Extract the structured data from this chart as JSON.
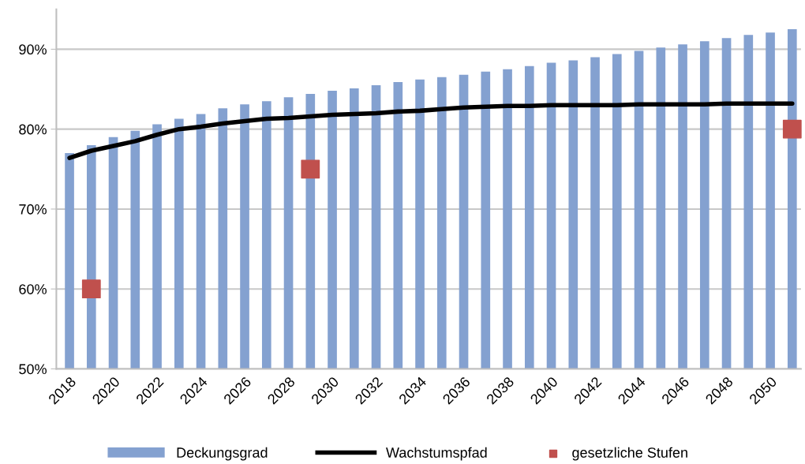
{
  "chart_data": {
    "type": "bar",
    "categories": [
      "2018",
      null,
      "2020",
      null,
      "2022",
      null,
      "2024",
      null,
      "2026",
      null,
      "2028",
      null,
      "2030",
      null,
      "2032",
      null,
      "2034",
      null,
      "2036",
      null,
      "2038",
      null,
      "2040",
      null,
      "2042",
      null,
      "2044",
      null,
      "2046",
      null,
      "2048",
      null,
      "2050",
      null
    ],
    "series": [
      {
        "name": "Deckungsgrad",
        "color": "#84a1d0",
        "values": [
          77.0,
          78.0,
          79.0,
          79.8,
          80.6,
          81.3,
          81.9,
          82.6,
          83.1,
          83.5,
          84.0,
          84.4,
          84.8,
          85.1,
          85.5,
          85.9,
          86.2,
          86.5,
          86.8,
          87.2,
          87.5,
          87.9,
          88.3,
          88.6,
          89.0,
          89.4,
          89.8,
          90.2,
          90.6,
          91.0,
          91.4,
          91.8,
          92.1,
          92.5
        ]
      },
      {
        "name": "Wachstumspfad",
        "type": "line",
        "color": "#000000",
        "marker": "none",
        "line_style": "solid",
        "values": [
          76.4,
          77.3,
          77.9,
          78.5,
          79.3,
          80.0,
          80.3,
          80.7,
          81.0,
          81.3,
          81.4,
          81.6,
          81.8,
          81.9,
          82.0,
          82.2,
          82.3,
          82.5,
          82.7,
          82.8,
          82.9,
          82.9,
          83.0,
          83.0,
          83.0,
          83.0,
          83.1,
          83.1,
          83.1,
          83.1,
          83.2,
          83.2,
          83.2,
          83.2
        ]
      },
      {
        "name": "gesetzliche Stufen",
        "type": "scatter",
        "color": "#c0504d",
        "marker": "square",
        "values": [
          null,
          60,
          null,
          null,
          null,
          null,
          null,
          null,
          null,
          null,
          null,
          75,
          null,
          null,
          null,
          null,
          null,
          null,
          null,
          null,
          null,
          null,
          null,
          null,
          null,
          null,
          null,
          null,
          null,
          null,
          null,
          null,
          null,
          80
        ]
      }
    ],
    "ylim": [
      50,
      95
    ],
    "yticks": [
      {
        "value": 50,
        "label": "50%"
      },
      {
        "value": 60,
        "label": "60%"
      },
      {
        "value": 70,
        "label": "70%"
      },
      {
        "value": 80,
        "label": "80%"
      },
      {
        "value": 90,
        "label": "90%"
      }
    ],
    "grid": "y",
    "legend": "bottom"
  }
}
